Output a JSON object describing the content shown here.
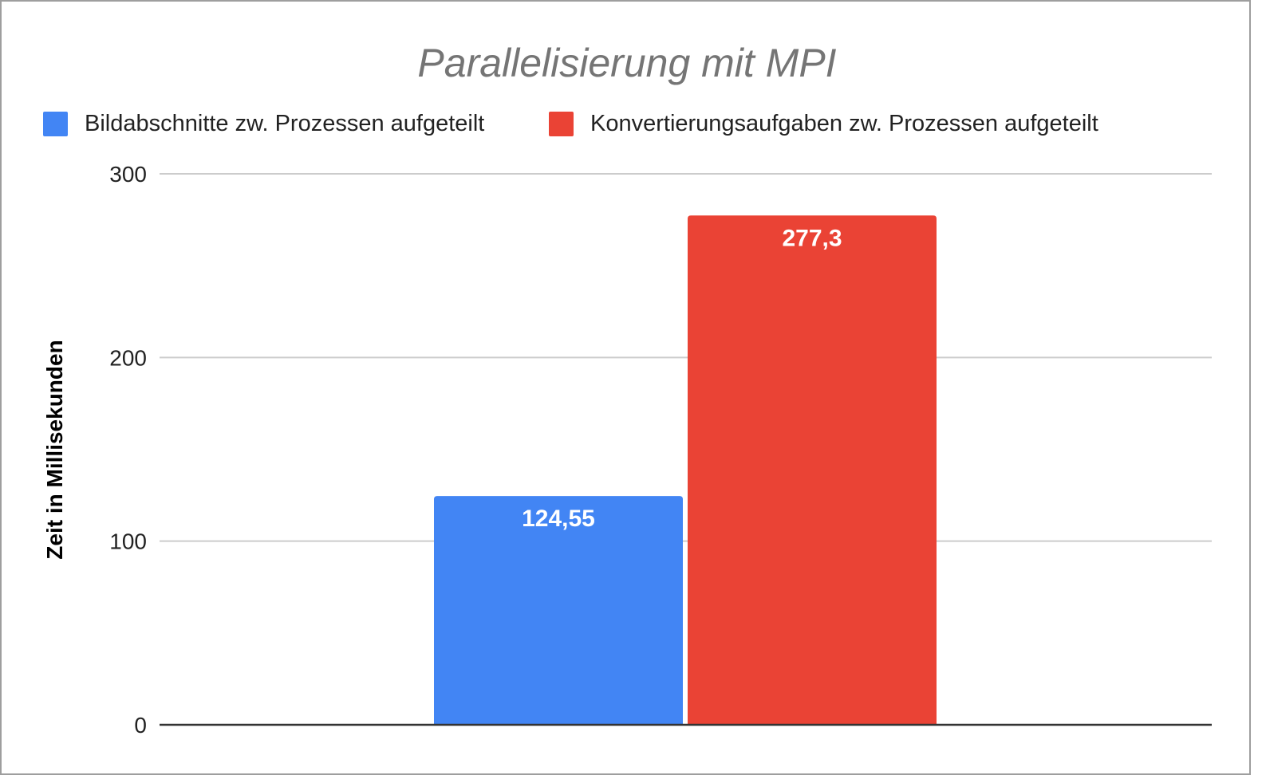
{
  "chart_data": {
    "type": "bar",
    "title": "Parallelisierung mit MPI",
    "xlabel": "",
    "ylabel": "Zeit in Millisekunden",
    "categories": [
      ""
    ],
    "series": [
      {
        "name": "Bildabschnitte zw. Prozessen aufgeteilt",
        "values": [
          124.55
        ],
        "label": "124,55",
        "color": "#4285f4"
      },
      {
        "name": "Konvertierungsaufgaben zw. Prozessen aufgeteilt",
        "values": [
          277.3
        ],
        "label": "277,3",
        "color": "#ea4335"
      }
    ],
    "ylim": [
      0,
      300
    ],
    "yticks": [
      {
        "value": 0,
        "label": "0"
      },
      {
        "value": 100,
        "label": "100"
      },
      {
        "value": 200,
        "label": "200"
      },
      {
        "value": 300,
        "label": "300"
      }
    ],
    "grid": true,
    "legend_position": "top-left",
    "colors": {
      "gridline": "#cccccc",
      "baseline": "#333333",
      "title": "#757575"
    }
  }
}
